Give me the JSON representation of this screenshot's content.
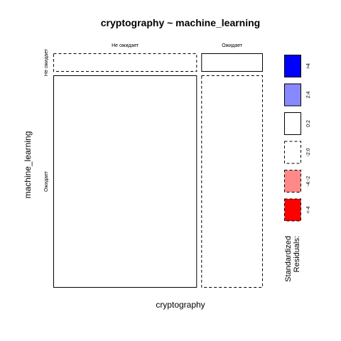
{
  "chart_data": {
    "type": "mosaic",
    "title": "cryptography ~ machine_learning",
    "xlabel": "cryptography",
    "ylabel": "machine_learning",
    "x_levels": [
      "Не ожидает",
      "Ожидает"
    ],
    "y_levels": [
      "Не ожидает",
      "Ожидает"
    ],
    "cells": [
      {
        "x": "Не ожидает",
        "y": "Не ожидает",
        "x_share": 0.7,
        "y_share": 0.08,
        "residual_bin": "-2:0",
        "border": "dashed",
        "fill": "#ffffff"
      },
      {
        "x": "Ожидает",
        "y": "Не ожидает",
        "x_share": 0.3,
        "y_share": 0.08,
        "residual_bin": "0:2",
        "border": "solid",
        "fill": "#ffffff"
      },
      {
        "x": "Не ожидает",
        "y": "Ожидает",
        "x_share": 0.7,
        "y_share": 0.92,
        "residual_bin": "0:2",
        "border": "solid",
        "fill": "#ffffff"
      },
      {
        "x": "Ожидает",
        "y": "Ожидает",
        "x_share": 0.3,
        "y_share": 0.92,
        "residual_bin": "-2:0",
        "border": "dashed",
        "fill": "#ffffff"
      }
    ],
    "legend": {
      "title_lines": [
        "Standardized",
        "Residuals:"
      ],
      "position": "right",
      "items": [
        {
          "label": ">4",
          "fill": "#0000ff",
          "border": "solid"
        },
        {
          "label": "2:4",
          "fill": "#8888ff",
          "border": "solid"
        },
        {
          "label": "0:2",
          "fill": "#ffffff",
          "border": "solid"
        },
        {
          "label": "-2:0",
          "fill": "#ffffff",
          "border": "dashed"
        },
        {
          "label": "-4:-2",
          "fill": "#ff8888",
          "border": "dashed"
        },
        {
          "label": "<-4",
          "fill": "#ff0000",
          "border": "dashed"
        }
      ]
    }
  }
}
